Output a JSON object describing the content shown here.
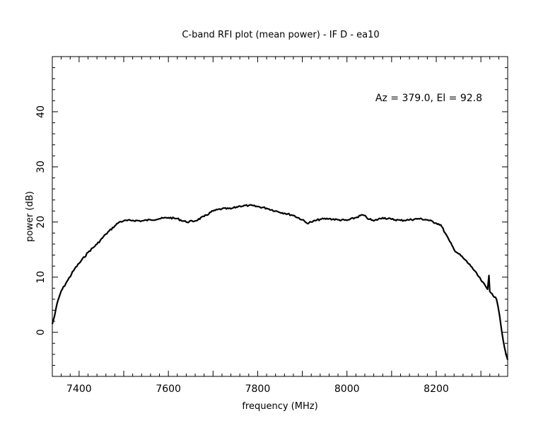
{
  "chart_data": {
    "type": "line",
    "title": "C-band RFI plot (mean power) - IF D - ea10",
    "xlabel": "frequency (MHz)",
    "ylabel": "power (dB)",
    "annotation": "Az = 379.0, El = 92.8",
    "xlim": [
      7340,
      8360
    ],
    "ylim": [
      -8,
      50
    ],
    "x_ticks": [
      7400,
      7600,
      7800,
      8000,
      8200
    ],
    "y_ticks": [
      0,
      10,
      20,
      30,
      40
    ],
    "grid": false,
    "line_color": "#000000",
    "series": [
      {
        "x": [
          7340,
          7345,
          7350,
          7360,
          7375,
          7390,
          7400,
          7420,
          7440,
          7460,
          7480,
          7490,
          7500,
          7520,
          7540,
          7560,
          7580,
          7600,
          7620,
          7640,
          7660,
          7680,
          7700,
          7720,
          7740,
          7760,
          7780,
          7800,
          7820,
          7840,
          7860,
          7880,
          7900,
          7910,
          7920,
          7940,
          7960,
          7980,
          8000,
          8020,
          8035,
          8050,
          8060,
          8080,
          8100,
          8120,
          8140,
          8160,
          8180,
          8200,
          8210,
          8220,
          8230,
          8240,
          8260,
          8280,
          8300,
          8315,
          8318,
          8320,
          8325,
          8335,
          8342,
          8350,
          8355,
          8360
        ],
        "y": [
          1.5,
          3.0,
          5.0,
          7.5,
          9.5,
          11.5,
          12.5,
          14.5,
          16.0,
          17.8,
          19.3,
          20.0,
          20.2,
          20.3,
          20.2,
          20.4,
          20.6,
          20.8,
          20.6,
          20.0,
          20.2,
          21.0,
          22.0,
          22.4,
          22.4,
          22.9,
          23.0,
          22.8,
          22.5,
          22.0,
          21.6,
          21.2,
          20.4,
          19.8,
          20.0,
          20.5,
          20.6,
          20.4,
          20.3,
          20.8,
          21.3,
          20.5,
          20.2,
          20.8,
          20.5,
          20.3,
          20.4,
          20.6,
          20.4,
          19.8,
          19.5,
          18.0,
          16.5,
          15.0,
          13.5,
          11.8,
          9.5,
          7.8,
          10.3,
          7.4,
          7.0,
          6.0,
          3.0,
          -1.5,
          -3.5,
          -5.0
        ]
      }
    ]
  }
}
